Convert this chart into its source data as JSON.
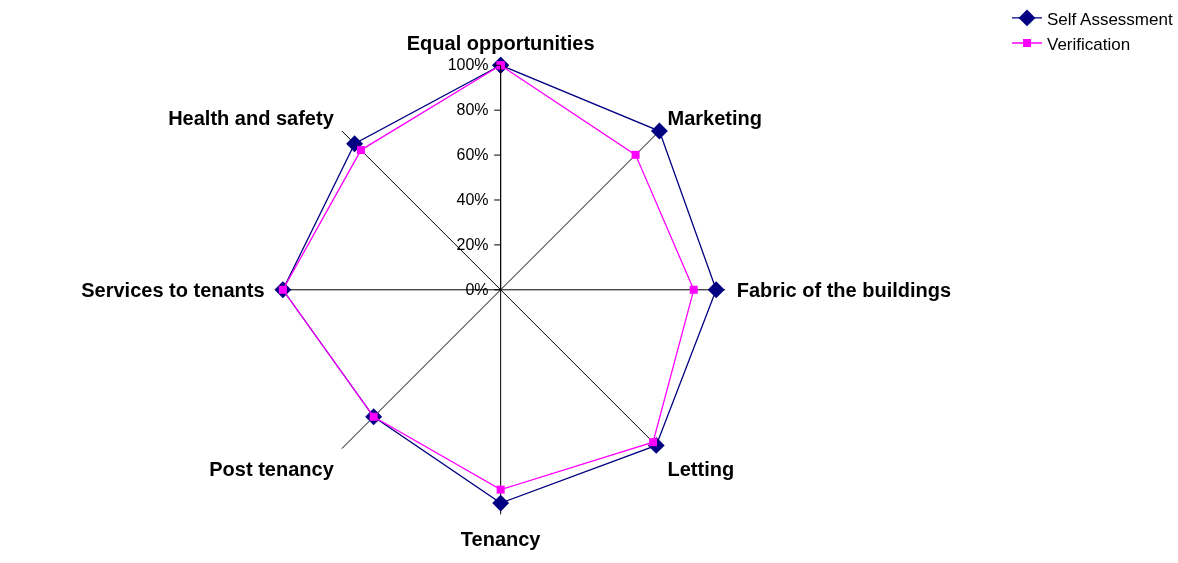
{
  "chart_data": {
    "type": "radar",
    "categories": [
      "Equal opportunities",
      "Marketing",
      "Fabric of the buildings",
      "Letting",
      "Tenancy",
      "Post tenancy",
      "Services to tenants",
      "Health and safety"
    ],
    "series": [
      {
        "name": "Self Assessment",
        "color": "#000080",
        "marker": "diamond",
        "values": [
          100,
          100,
          96,
          98,
          95,
          80,
          97,
          92
        ]
      },
      {
        "name": "Verification",
        "color": "#ff00ff",
        "marker": "square",
        "values": [
          100,
          85,
          86,
          96,
          89,
          80,
          97,
          88
        ]
      }
    ],
    "ylim": [
      0,
      100
    ],
    "yticks": [
      {
        "value": 0,
        "label": "0%"
      },
      {
        "value": 20,
        "label": "20%"
      },
      {
        "value": 40,
        "label": "40%"
      },
      {
        "value": 60,
        "label": "60%"
      },
      {
        "value": 80,
        "label": "80%"
      },
      {
        "value": 100,
        "label": "100%"
      }
    ],
    "grid": "x",
    "legend": "top right",
    "line_style": "solid"
  }
}
